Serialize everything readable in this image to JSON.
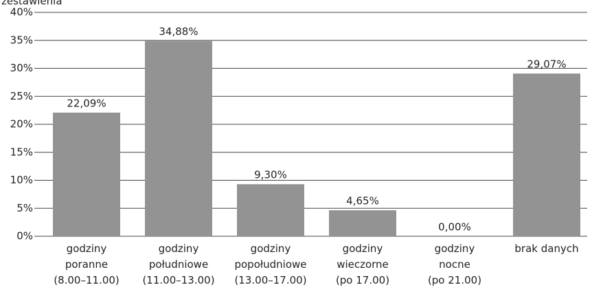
{
  "chart_data": {
    "type": "bar",
    "ylabel": "zestawienia",
    "categories": [
      [
        "godziny",
        "poranne",
        "(8.00–11.00)"
      ],
      [
        "godziny",
        "południowe",
        "(11.00–13.00)"
      ],
      [
        "godziny",
        "popołudniowe",
        "(13.00–17.00)"
      ],
      [
        "godziny",
        "wieczorne",
        "(po 17.00)"
      ],
      [
        "godziny",
        "nocne",
        "(po 21.00)"
      ],
      [
        "brak danych"
      ]
    ],
    "values": [
      22.09,
      34.88,
      9.3,
      4.65,
      0,
      29.07
    ],
    "value_labels": [
      "22,09%",
      "34,88%",
      "9,30%",
      "4,65%",
      "0,00%",
      "29,07%"
    ],
    "color": "#939393",
    "ylim": [
      0,
      40
    ],
    "yticks": [
      {
        "value": 0,
        "label": "0%"
      },
      {
        "value": 5,
        "label": "5%"
      },
      {
        "value": 10,
        "label": "10%"
      },
      {
        "value": 15,
        "label": "15%"
      },
      {
        "value": 20,
        "label": "20%"
      },
      {
        "value": 25,
        "label": "25%"
      },
      {
        "value": 30,
        "label": "30%"
      },
      {
        "value": 35,
        "label": "35%"
      },
      {
        "value": 40,
        "label": "40%"
      }
    ],
    "grid": true
  }
}
